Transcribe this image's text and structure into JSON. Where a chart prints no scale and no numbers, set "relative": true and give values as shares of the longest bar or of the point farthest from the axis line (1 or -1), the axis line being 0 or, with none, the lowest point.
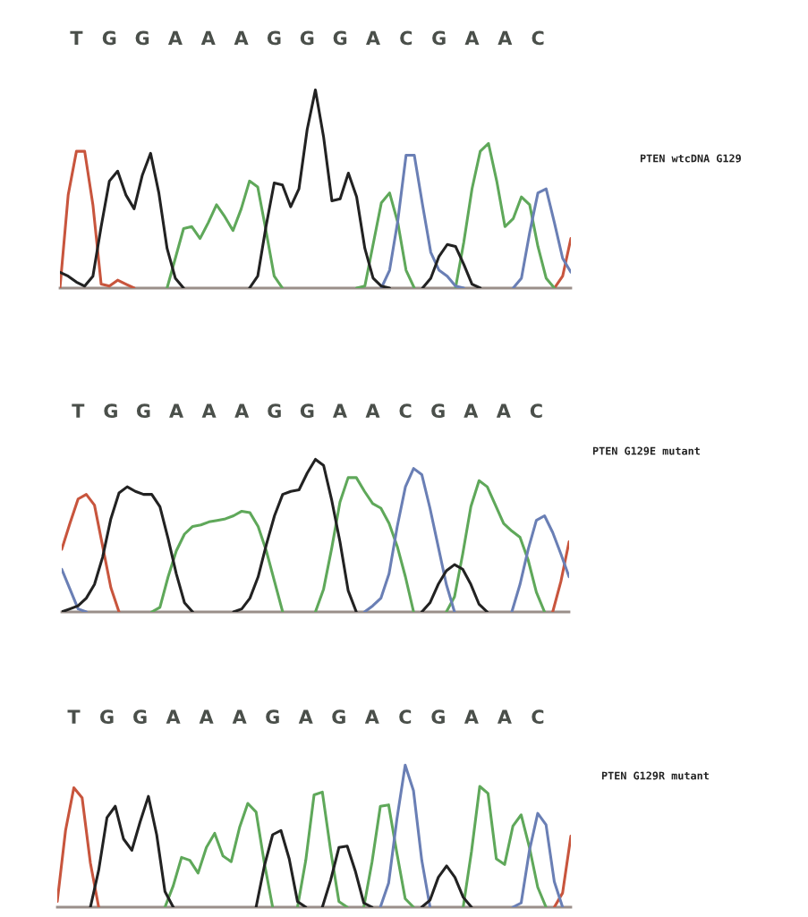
{
  "chart_data": [
    {
      "type": "line",
      "annotations": [
        "PTEN wtcDNA G129"
      ],
      "relative": true,
      "tick_labels": "x",
      "categories": [
        null,
        null,
        "T",
        null,
        null,
        null,
        "G",
        null,
        null,
        null,
        "G",
        null,
        null,
        null,
        "A",
        null,
        null,
        null,
        "A",
        null,
        null,
        null,
        "A",
        null,
        null,
        null,
        "G",
        null,
        null,
        null,
        "G",
        null,
        null,
        null,
        "G",
        null,
        null,
        null,
        "A",
        null,
        null,
        null,
        "C",
        null,
        null,
        null,
        "G",
        null,
        null,
        null,
        "A",
        null,
        null,
        null,
        "A",
        null,
        null,
        null,
        "C",
        null,
        null,
        null,
        null
      ],
      "series": [
        {
          "color": "#c8553d",
          "values": [
            0,
            0.47,
            0.69,
            0.69,
            0.42,
            0.02,
            0.01,
            0.04,
            0.02,
            0,
            null,
            null,
            null,
            null,
            null,
            null,
            null,
            null,
            null,
            null,
            null,
            null,
            null,
            null,
            null,
            null,
            null,
            null,
            null,
            null,
            null,
            null,
            null,
            null,
            null,
            null,
            null,
            null,
            null,
            null,
            null,
            null,
            null,
            null,
            null,
            null,
            null,
            null,
            null,
            null,
            null,
            null,
            null,
            null,
            null,
            null,
            null,
            null,
            null,
            null,
            0,
            0.06,
            0.25
          ]
        },
        {
          "color": "#5fa85a",
          "values": [
            null,
            null,
            null,
            null,
            null,
            null,
            null,
            null,
            null,
            null,
            null,
            null,
            null,
            0,
            0.15,
            0.3,
            0.31,
            0.25,
            0.33,
            0.42,
            0.36,
            0.29,
            0.4,
            0.54,
            0.51,
            0.29,
            0.06,
            0,
            null,
            null,
            null,
            null,
            null,
            null,
            null,
            null,
            0,
            0.01,
            0.22,
            0.43,
            0.48,
            0.33,
            0.09,
            0,
            null,
            null,
            null,
            null,
            0,
            0.23,
            0.5,
            0.69,
            0.73,
            0.54,
            0.31,
            0.35,
            0.46,
            0.42,
            0.21,
            0.05,
            0,
            null,
            null
          ]
        },
        {
          "color": "#6a7fb5",
          "values": [
            null,
            null,
            null,
            null,
            null,
            null,
            null,
            null,
            null,
            null,
            null,
            null,
            null,
            null,
            null,
            null,
            null,
            null,
            null,
            null,
            null,
            null,
            null,
            null,
            null,
            null,
            null,
            null,
            null,
            null,
            null,
            null,
            null,
            null,
            null,
            null,
            null,
            null,
            null,
            0,
            0.09,
            0.34,
            0.67,
            0.67,
            0.42,
            0.18,
            0.09,
            0.06,
            0.01,
            0,
            null,
            null,
            null,
            null,
            null,
            0,
            0.05,
            0.28,
            0.48,
            0.5,
            0.33,
            0.15,
            0.08
          ]
        },
        {
          "color": "#222222",
          "values": [
            0.08,
            0.06,
            0.03,
            0.01,
            0.06,
            0.31,
            0.54,
            0.59,
            0.47,
            0.4,
            0.57,
            0.68,
            0.48,
            0.2,
            0.05,
            0,
            null,
            null,
            null,
            null,
            null,
            null,
            null,
            0,
            0.06,
            0.31,
            0.53,
            0.52,
            0.41,
            0.5,
            0.8,
            1.0,
            0.76,
            0.44,
            0.45,
            0.58,
            0.46,
            0.2,
            0.05,
            0.01,
            0,
            null,
            null,
            null,
            0,
            0.05,
            0.16,
            0.22,
            0.21,
            0.12,
            0.02,
            0,
            null,
            null,
            null,
            null,
            null,
            null,
            null,
            null,
            null,
            null,
            null
          ]
        }
      ]
    },
    {
      "type": "line",
      "annotations": [
        "PTEN G129E mutant"
      ],
      "relative": true,
      "tick_labels": "x",
      "categories": [
        null,
        null,
        "T",
        null,
        null,
        null,
        "G",
        null,
        null,
        null,
        "G",
        null,
        null,
        null,
        "A",
        null,
        null,
        null,
        "A",
        null,
        null,
        null,
        "A",
        null,
        null,
        null,
        "G",
        null,
        null,
        null,
        "G",
        null,
        null,
        null,
        "A",
        null,
        null,
        null,
        "A",
        null,
        null,
        null,
        "C",
        null,
        null,
        null,
        "G",
        null,
        null,
        null,
        "A",
        null,
        null,
        null,
        "A",
        null,
        null,
        null,
        "C",
        null,
        null,
        null,
        null
      ],
      "series": [
        {
          "color": "#c8553d",
          "values": [
            0.41,
            0.58,
            0.74,
            0.77,
            0.7,
            0.43,
            0.16,
            0,
            null,
            null,
            null,
            null,
            null,
            null,
            null,
            null,
            null,
            null,
            null,
            null,
            null,
            null,
            null,
            null,
            null,
            null,
            null,
            null,
            null,
            null,
            null,
            null,
            null,
            null,
            null,
            null,
            null,
            null,
            null,
            null,
            null,
            null,
            null,
            null,
            null,
            null,
            null,
            null,
            null,
            null,
            null,
            null,
            null,
            null,
            null,
            null,
            null,
            null,
            null,
            null,
            0,
            0.2,
            0.46
          ]
        },
        {
          "color": "#5fa85a",
          "values": [
            null,
            null,
            null,
            null,
            null,
            null,
            null,
            null,
            null,
            null,
            null,
            0,
            0.03,
            0.23,
            0.4,
            0.51,
            0.56,
            0.57,
            0.59,
            0.6,
            0.61,
            0.63,
            0.66,
            0.65,
            0.56,
            0.4,
            0.2,
            0,
            null,
            null,
            null,
            0,
            0.15,
            0.42,
            0.72,
            0.88,
            0.88,
            0.79,
            0.71,
            0.68,
            0.58,
            0.43,
            0.23,
            0,
            null,
            null,
            null,
            0,
            0.1,
            0.38,
            0.69,
            0.86,
            0.82,
            0.7,
            0.58,
            0.53,
            0.49,
            0.34,
            0.13,
            0,
            null,
            null,
            null
          ]
        },
        {
          "color": "#6a7fb5",
          "values": [
            0.28,
            0.15,
            0.02,
            0,
            null,
            null,
            null,
            null,
            null,
            null,
            null,
            null,
            null,
            null,
            null,
            null,
            null,
            null,
            null,
            null,
            null,
            null,
            null,
            null,
            null,
            null,
            null,
            null,
            null,
            null,
            null,
            null,
            null,
            null,
            null,
            null,
            null,
            0,
            0.04,
            0.09,
            0.25,
            0.56,
            0.82,
            0.94,
            0.9,
            0.68,
            0.43,
            0.18,
            0,
            null,
            null,
            null,
            null,
            null,
            null,
            0,
            0.18,
            0.41,
            0.6,
            0.63,
            0.52,
            0.38,
            0.23
          ]
        },
        {
          "color": "#222222",
          "values": [
            0,
            0.02,
            0.04,
            0.09,
            0.18,
            0.36,
            0.61,
            0.78,
            0.82,
            0.79,
            0.77,
            0.77,
            0.69,
            0.48,
            0.25,
            0.06,
            0,
            null,
            null,
            null,
            null,
            0,
            0.02,
            0.09,
            0.23,
            0.44,
            0.63,
            0.77,
            0.79,
            0.8,
            0.91,
            1.0,
            0.96,
            0.73,
            0.46,
            0.14,
            0,
            null,
            null,
            null,
            null,
            null,
            null,
            null,
            0,
            0.06,
            0.18,
            0.27,
            0.31,
            0.28,
            0.18,
            0.05,
            0,
            null,
            null,
            null,
            null,
            null,
            null,
            null,
            null,
            null,
            null
          ]
        }
      ]
    },
    {
      "type": "line",
      "annotations": [
        "PTEN G129R mutant"
      ],
      "relative": true,
      "tick_labels": "x",
      "categories": [
        null,
        null,
        "T",
        null,
        null,
        null,
        "G",
        null,
        null,
        null,
        "G",
        null,
        null,
        null,
        "A",
        null,
        null,
        null,
        "A",
        null,
        null,
        null,
        "A",
        null,
        null,
        null,
        "G",
        null,
        null,
        null,
        "A",
        null,
        null,
        null,
        "G",
        null,
        null,
        null,
        "A",
        null,
        null,
        null,
        "C",
        null,
        null,
        null,
        "G",
        null,
        null,
        null,
        "A",
        null,
        null,
        null,
        "A",
        null,
        null,
        null,
        "C",
        null,
        null,
        null,
        null
      ],
      "series": [
        {
          "color": "#c8553d",
          "values": [
            0.04,
            0.54,
            0.84,
            0.77,
            0.31,
            0,
            null,
            null,
            null,
            null,
            null,
            null,
            null,
            null,
            null,
            null,
            null,
            null,
            null,
            null,
            null,
            null,
            null,
            null,
            null,
            null,
            null,
            null,
            null,
            null,
            null,
            null,
            null,
            null,
            null,
            null,
            null,
            null,
            null,
            null,
            null,
            null,
            null,
            null,
            null,
            null,
            null,
            null,
            null,
            null,
            null,
            null,
            null,
            null,
            null,
            null,
            null,
            null,
            null,
            null,
            0,
            0.1,
            0.5
          ]
        },
        {
          "color": "#5fa85a",
          "values": [
            null,
            null,
            null,
            null,
            null,
            null,
            null,
            null,
            null,
            null,
            null,
            null,
            null,
            0,
            0.15,
            0.35,
            0.33,
            0.24,
            0.42,
            0.52,
            0.36,
            0.32,
            0.56,
            0.73,
            0.67,
            0.31,
            0,
            null,
            null,
            0,
            0.33,
            0.79,
            0.81,
            0.4,
            0.04,
            0,
            null,
            0,
            0.32,
            0.71,
            0.72,
            0.38,
            0.06,
            0,
            null,
            null,
            null,
            null,
            null,
            0,
            0.39,
            0.85,
            0.8,
            0.34,
            0.3,
            0.57,
            0.65,
            0.42,
            0.14,
            0,
            null,
            null,
            null
          ]
        },
        {
          "color": "#6a7fb5",
          "values": [
            null,
            null,
            null,
            null,
            null,
            null,
            null,
            null,
            null,
            null,
            null,
            null,
            null,
            null,
            null,
            null,
            null,
            null,
            null,
            null,
            null,
            null,
            null,
            null,
            null,
            null,
            null,
            null,
            null,
            null,
            null,
            null,
            null,
            null,
            null,
            null,
            null,
            null,
            null,
            0,
            0.17,
            0.62,
            1.0,
            0.82,
            0.33,
            0,
            null,
            null,
            null,
            null,
            null,
            null,
            null,
            null,
            null,
            0,
            0.03,
            0.4,
            0.66,
            0.58,
            0.18,
            0,
            null
          ]
        },
        {
          "color": "#222222",
          "values": [
            null,
            null,
            null,
            null,
            0,
            0.26,
            0.63,
            0.71,
            0.48,
            0.4,
            0.6,
            0.78,
            0.51,
            0.11,
            0,
            null,
            null,
            null,
            null,
            null,
            null,
            null,
            null,
            null,
            0,
            0.29,
            0.51,
            0.54,
            0.34,
            0.04,
            0,
            null,
            0,
            0.19,
            0.42,
            0.43,
            0.25,
            0.03,
            0,
            null,
            null,
            null,
            null,
            null,
            0,
            0.05,
            0.21,
            0.29,
            0.21,
            0.07,
            0,
            null,
            null,
            null,
            null,
            null,
            null,
            null,
            null,
            null,
            null,
            null,
            null
          ]
        }
      ]
    }
  ]
}
